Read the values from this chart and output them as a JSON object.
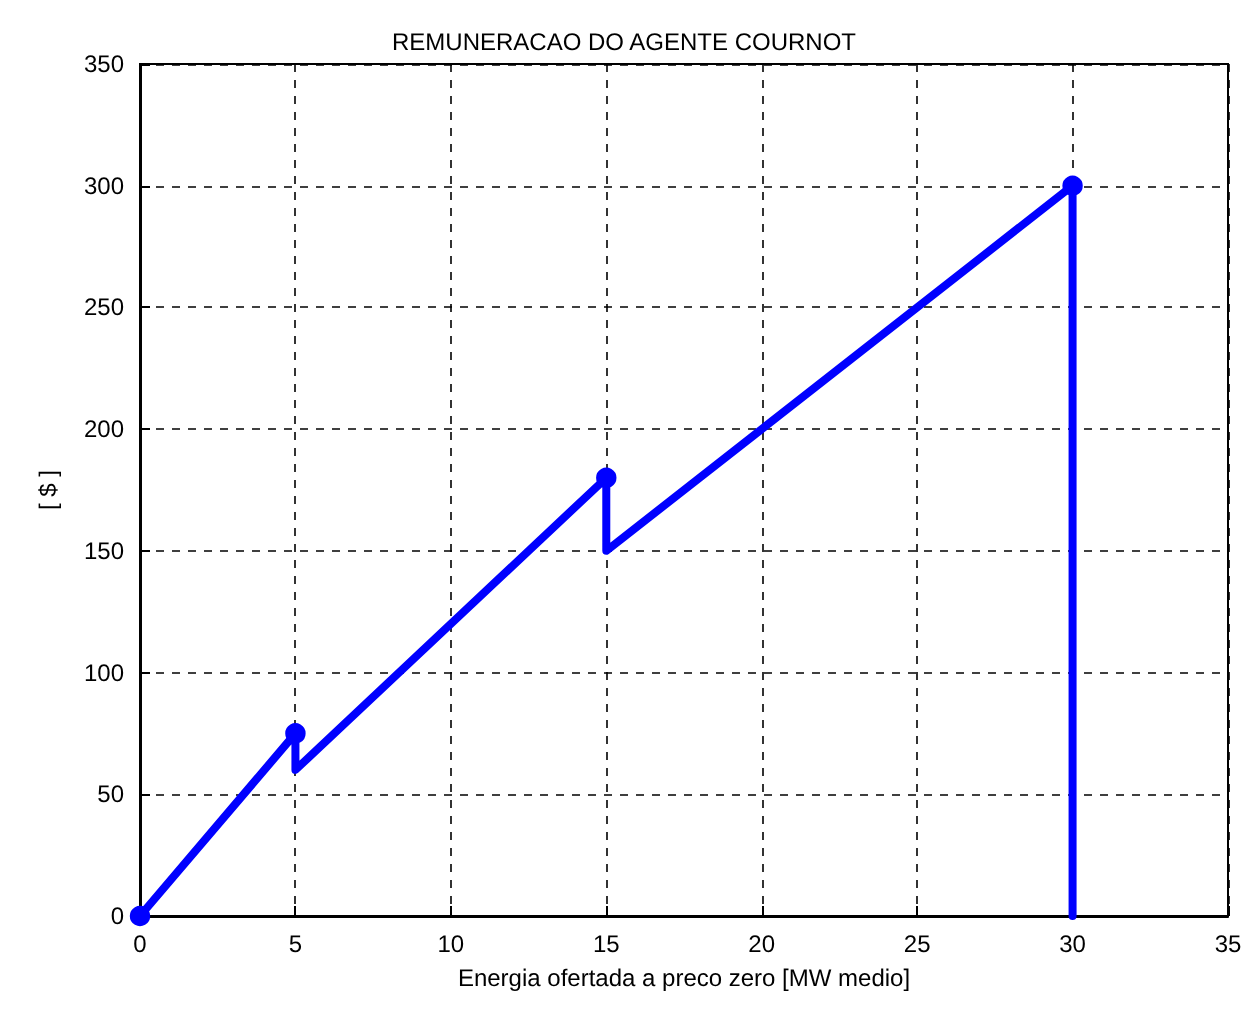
{
  "chart_data": {
    "type": "line",
    "title": "REMUNERACAO DO AGENTE COURNOT",
    "xlabel": "Energia ofertada a preco zero [MW medio]",
    "ylabel": "[ $ ]",
    "series": [
      {
        "color": "#0000ff",
        "x": [
          0,
          5,
          5,
          15,
          15,
          30,
          30
        ],
        "values": [
          0,
          75,
          60,
          180,
          150,
          300,
          0
        ],
        "marker": "none",
        "line_style": "solid"
      },
      {
        "type": "scatter",
        "color": "#0000ff",
        "x": [
          0,
          5,
          15,
          30
        ],
        "values": [
          0,
          75,
          180,
          300
        ],
        "marker": "circle"
      }
    ],
    "xlim": [
      0,
      35
    ],
    "xticks": [
      0,
      5,
      10,
      15,
      20,
      25,
      30,
      35
    ],
    "ylim": [
      0,
      350
    ],
    "yticks": [
      0,
      50,
      100,
      150,
      200,
      250,
      300,
      350
    ],
    "grid": true
  }
}
